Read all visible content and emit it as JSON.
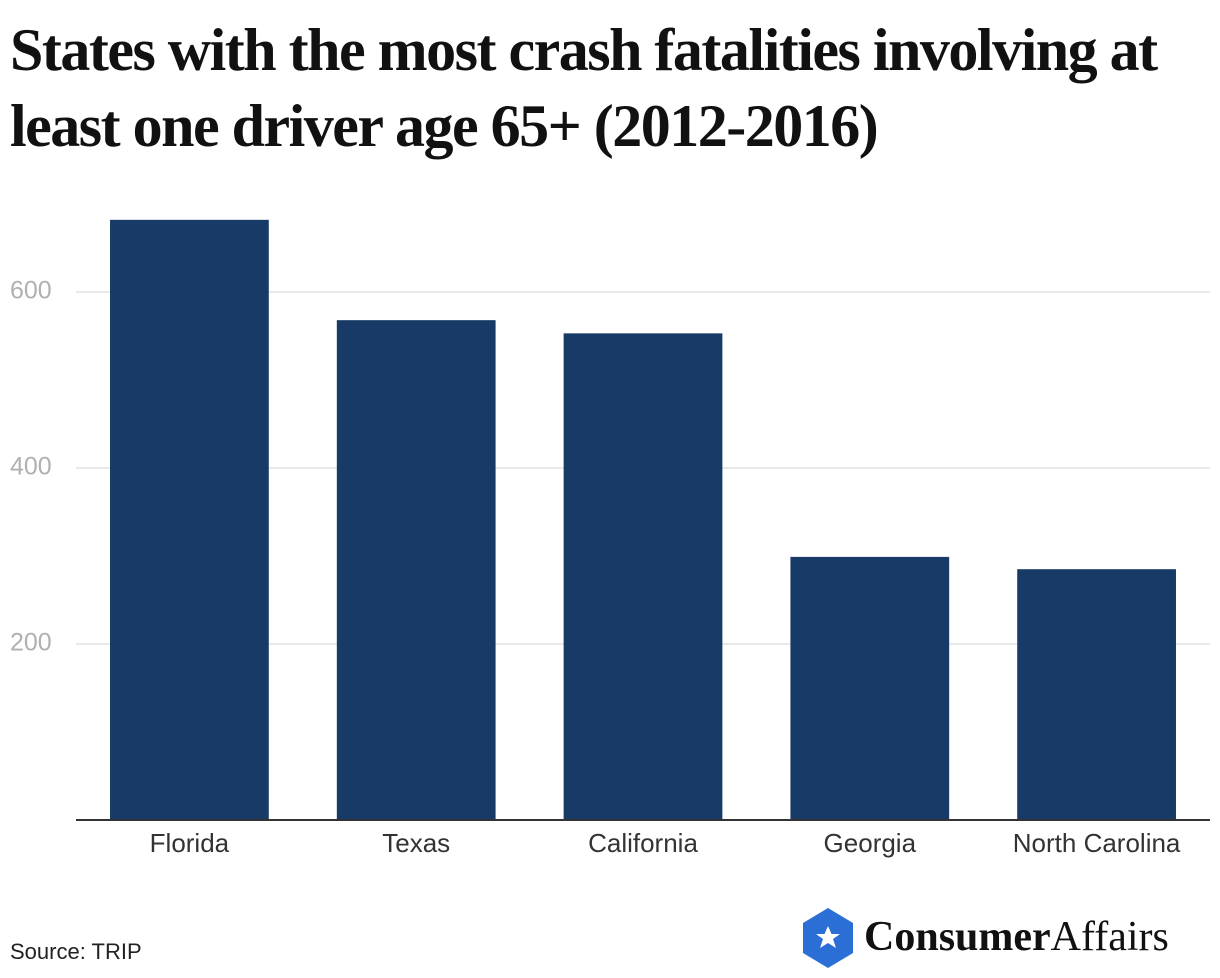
{
  "chart_data": {
    "type": "bar",
    "title": "States with the most crash fatalities involving at least one driver age 65+ (2012-2016)",
    "categories": [
      "Florida",
      "Texas",
      "California",
      "Georgia",
      "North Carolina"
    ],
    "values": [
      682,
      568,
      553,
      299,
      285
    ],
    "color": "#173a66",
    "ylim": [
      0,
      700
    ],
    "yticks": [
      200,
      400,
      600
    ],
    "grid": true,
    "source": "Source: TRIP"
  },
  "logo": {
    "bold": "Consumer",
    "regular": "Affairs"
  }
}
